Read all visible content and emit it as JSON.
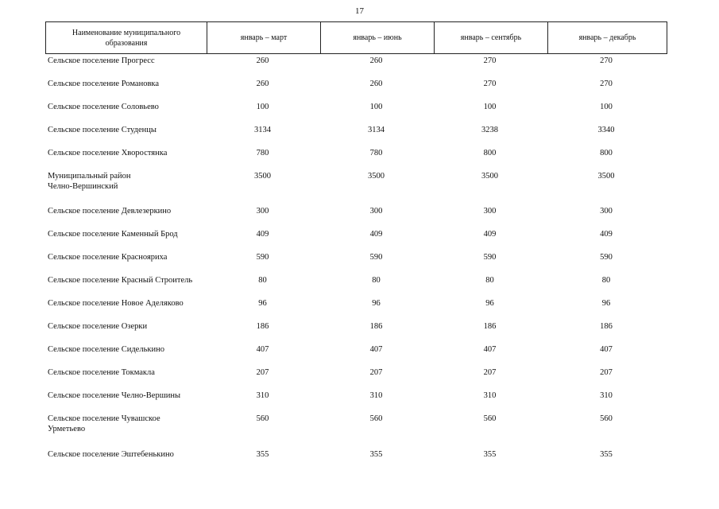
{
  "page_number": "17",
  "table": {
    "headers": [
      "Наименование муниципального образования",
      "январь – март",
      "январь – июнь",
      "январь – сентябрь",
      "январь – декабрь"
    ],
    "rows": [
      {
        "name": "Сельское поселение Прогресс",
        "values": [
          "260",
          "260",
          "270",
          "270"
        ]
      },
      {
        "name": "Сельское поселение Романовка",
        "values": [
          "260",
          "260",
          "270",
          "270"
        ]
      },
      {
        "name": "Сельское поселение Соловьево",
        "values": [
          "100",
          "100",
          "100",
          "100"
        ]
      },
      {
        "name": "Сельское поселение Студенцы",
        "values": [
          "3134",
          "3134",
          "3238",
          "3340"
        ]
      },
      {
        "name": "Сельское поселение Хворостянка",
        "values": [
          "780",
          "780",
          "800",
          "800"
        ]
      },
      {
        "name": "Муниципальный район Челно-Вершинский",
        "values": [
          "3500",
          "3500",
          "3500",
          "3500"
        ]
      },
      {
        "name": "Сельское поселение Девлезеркино",
        "values": [
          "300",
          "300",
          "300",
          "300"
        ]
      },
      {
        "name": "Сельское поселение Каменный Брод",
        "values": [
          "409",
          "409",
          "409",
          "409"
        ]
      },
      {
        "name": "Сельское поселение Краснояриха",
        "values": [
          "590",
          "590",
          "590",
          "590"
        ]
      },
      {
        "name": "Сельское поселение Красный Строитель",
        "values": [
          "80",
          "80",
          "80",
          "80"
        ]
      },
      {
        "name": "Сельское поселение Новое Аделяково",
        "values": [
          "96",
          "96",
          "96",
          "96"
        ]
      },
      {
        "name": "Сельское поселение Озерки",
        "values": [
          "186",
          "186",
          "186",
          "186"
        ]
      },
      {
        "name": "Сельское поселение Сиделькино",
        "values": [
          "407",
          "407",
          "407",
          "407"
        ]
      },
      {
        "name": "Сельское поселение Токмакла",
        "values": [
          "207",
          "207",
          "207",
          "207"
        ]
      },
      {
        "name": "Сельское поселение Челно-Вершины",
        "values": [
          "310",
          "310",
          "310",
          "310"
        ]
      },
      {
        "name": "Сельское поселение Чувашское Урметьево",
        "values": [
          "560",
          "560",
          "560",
          "560"
        ]
      },
      {
        "name": "Сельское поселение Эштебенькино",
        "values": [
          "355",
          "355",
          "355",
          "355"
        ]
      }
    ]
  }
}
